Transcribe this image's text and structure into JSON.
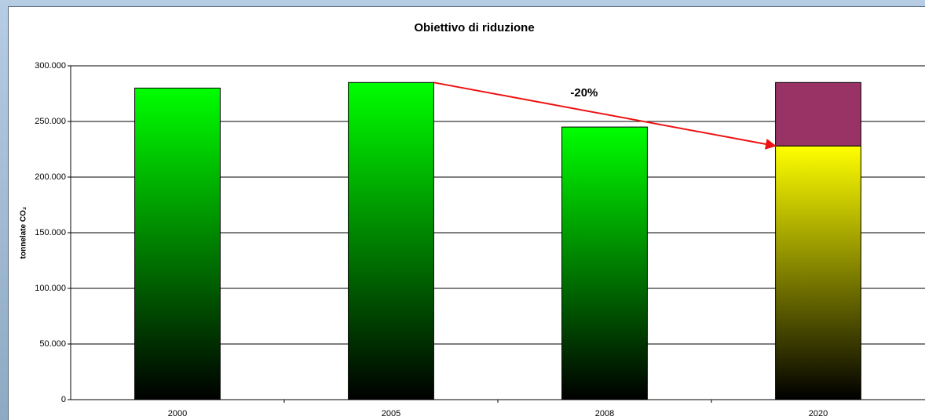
{
  "chart_data": {
    "type": "stacked-bar",
    "title": "Obiettivo di riduzione",
    "y_label": "tonnelate CO₂",
    "categories": [
      "2000",
      "2005",
      "2008",
      "2020"
    ],
    "series": [
      {
        "values": [
          280000,
          285000,
          245000,
          228000
        ],
        "colors": [
          "#00ff00",
          "#00ff00",
          "#00ff00",
          "#ffff00"
        ]
      },
      {
        "values": [
          null,
          null,
          null,
          57000
        ],
        "color": "#993366"
      }
    ],
    "ylim": [
      0,
      300000
    ],
    "yticks": [
      0,
      {
        "value": 50000,
        "label": "50.000"
      },
      {
        "value": 100000,
        "label": "100.000"
      },
      {
        "value": 150000,
        "label": "150.000"
      },
      {
        "value": 200000,
        "label": "200.000"
      },
      {
        "value": 250000,
        "label": "250.000"
      },
      {
        "value": 300000,
        "label": "300.000"
      }
    ],
    "grid": true,
    "annotation": "-20%"
  }
}
